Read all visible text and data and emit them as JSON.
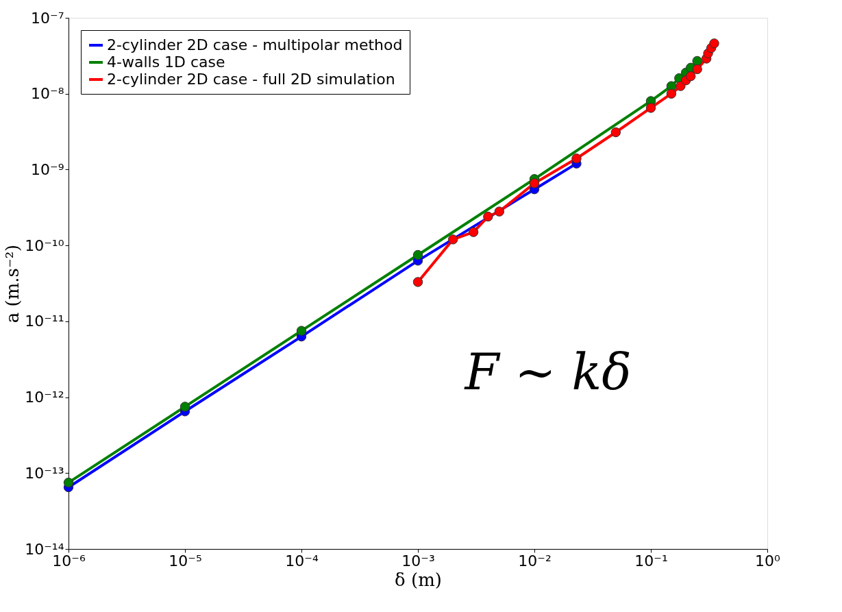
{
  "chart_data": {
    "type": "line",
    "xlabel": "δ (m)",
    "ylabel": "a (m.s⁻²)",
    "log": "xy",
    "grid": false,
    "legend": "top left",
    "marker": "circle",
    "line_style": "solid",
    "xlim": [
      1e-06,
      1
    ],
    "ylim": [
      1e-14,
      1e-07
    ],
    "xticks": [
      {
        "value": 1e-06,
        "label": "10⁻⁶"
      },
      {
        "value": 1e-05,
        "label": "10⁻⁵"
      },
      {
        "value": 0.0001,
        "label": "10⁻⁴"
      },
      {
        "value": 0.001,
        "label": "10⁻³"
      },
      {
        "value": 0.01,
        "label": "10⁻²"
      },
      {
        "value": 0.1,
        "label": "10⁻¹"
      },
      {
        "value": 1,
        "label": "10⁰"
      }
    ],
    "yticks": [
      {
        "value": 1e-14,
        "label": "10⁻¹⁴"
      },
      {
        "value": 1e-13,
        "label": "10⁻¹³"
      },
      {
        "value": 1e-12,
        "label": "10⁻¹²"
      },
      {
        "value": 1e-11,
        "label": "10⁻¹¹"
      },
      {
        "value": 1e-10,
        "label": "10⁻¹⁰"
      },
      {
        "value": 1e-09,
        "label": "10⁻⁹"
      },
      {
        "value": 1e-08,
        "label": "10⁻⁸"
      },
      {
        "value": 1e-07,
        "label": "10⁻⁷"
      }
    ],
    "series": [
      {
        "name": "2-cylinder 2D case - multipolar method",
        "color": "#0000ff",
        "x": [
          1e-06,
          1e-05,
          0.0001,
          0.001,
          0.01,
          0.023
        ],
        "values": [
          6.5e-14,
          6.5e-13,
          6.3e-12,
          6.3e-11,
          5.5e-10,
          1.2e-09
        ]
      },
      {
        "name": "4-walls 1D case",
        "color": "#008000",
        "x": [
          1e-06,
          1e-05,
          0.0001,
          0.001,
          0.01,
          0.1,
          0.15,
          0.175,
          0.2,
          0.22,
          0.25
        ],
        "values": [
          7.5e-14,
          7.5e-13,
          7.5e-12,
          7.5e-11,
          7.5e-10,
          8e-09,
          1.26e-08,
          1.6e-08,
          1.9e-08,
          2.2e-08,
          2.7e-08
        ]
      },
      {
        "name": "2-cylinder 2D case - full 2D simulation",
        "color": "#ff0000",
        "x": [
          0.001,
          0.002,
          0.003,
          0.004,
          0.005,
          0.01,
          0.023,
          0.05,
          0.1,
          0.15,
          0.18,
          0.2,
          0.22,
          0.25,
          0.3,
          0.31,
          0.33,
          0.35
        ],
        "values": [
          3.3e-11,
          1.2e-10,
          1.5e-10,
          2.4e-10,
          2.8e-10,
          6.6e-10,
          1.4e-09,
          3.1e-09,
          6.5e-09,
          1e-08,
          1.26e-08,
          1.5e-08,
          1.7e-08,
          2.1e-08,
          2.9e-08,
          3.4e-08,
          4e-08,
          4.6e-08
        ]
      }
    ],
    "annotations": [
      "F ∼ kδ"
    ]
  }
}
